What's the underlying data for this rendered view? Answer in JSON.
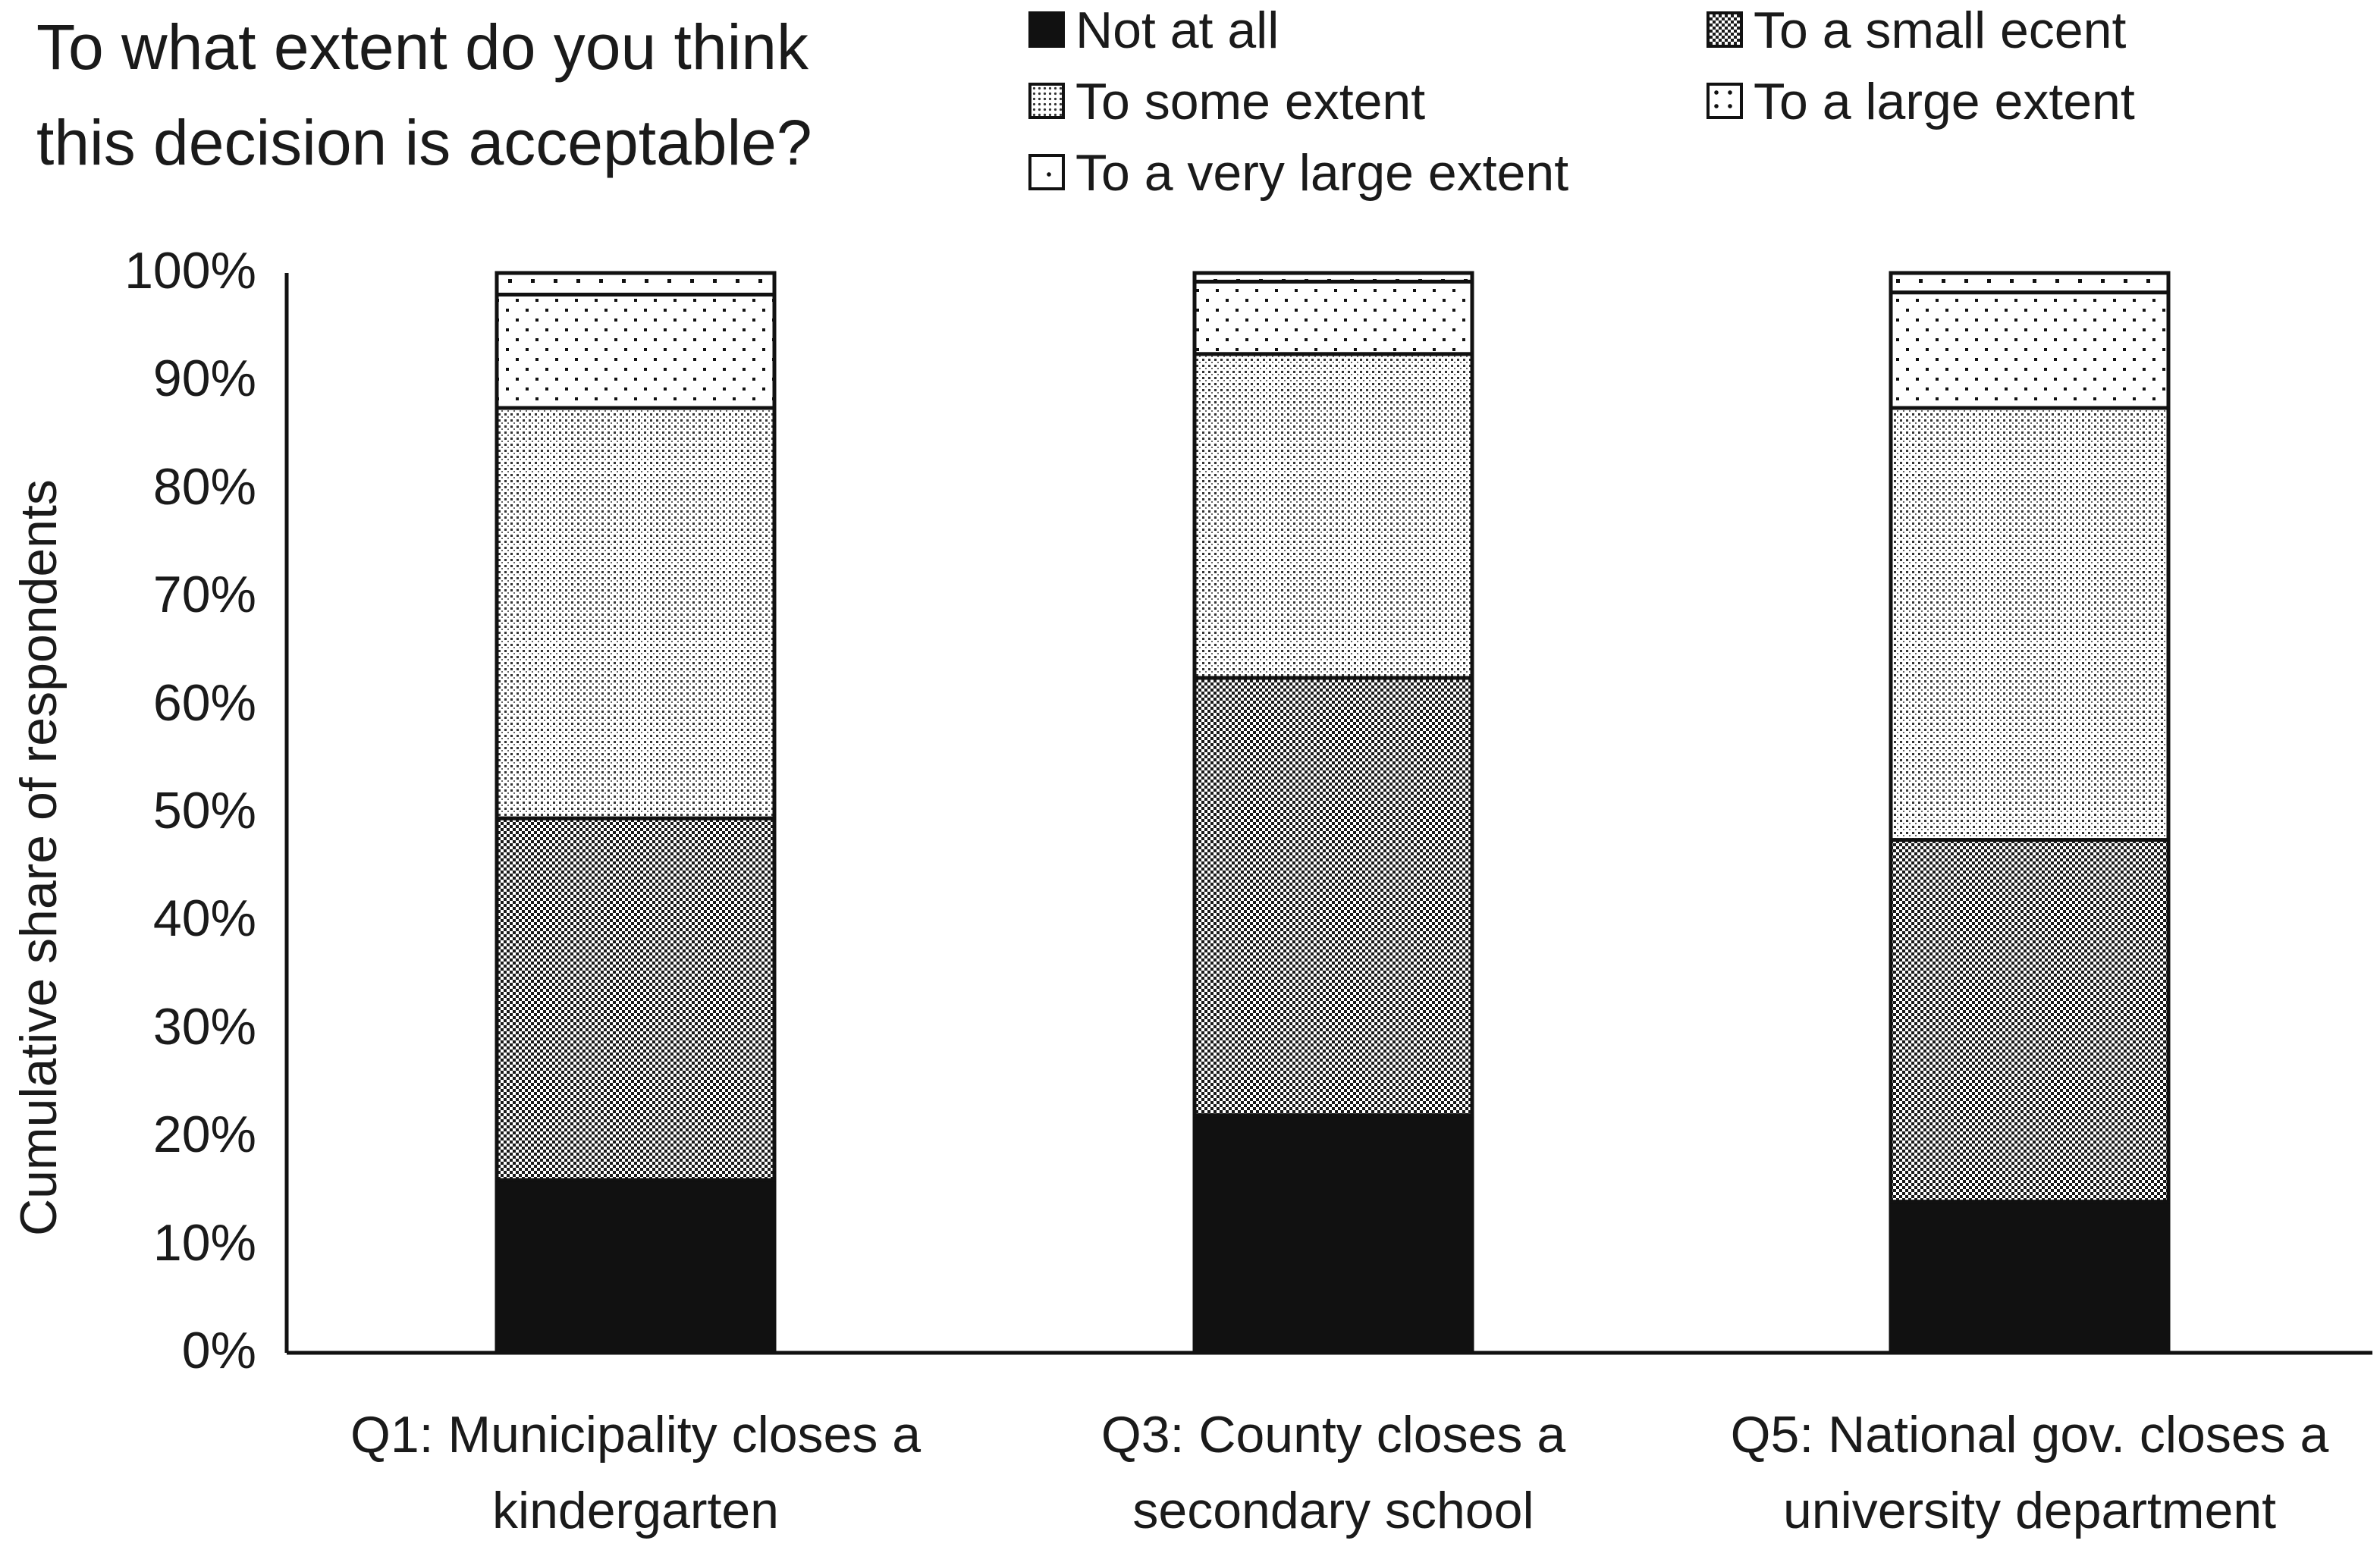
{
  "chart_data": {
    "type": "bar",
    "stacked": true,
    "title": [
      "To what extent do you think",
      "this decision is acceptable?"
    ],
    "ylabel": "Cumulative share of respondents",
    "xlabel": "",
    "ylim": [
      0,
      100
    ],
    "y_ticks": [
      "0%",
      "10%",
      "20%",
      "30%",
      "40%",
      "50%",
      "60%",
      "70%",
      "80%",
      "90%",
      "100%"
    ],
    "categories": [
      [
        "Q1: Municipality closes a",
        "kindergarten"
      ],
      [
        "Q3: County closes a",
        "secondary school"
      ],
      [
        "Q5: National gov. closes a",
        "university department"
      ]
    ],
    "series": [
      {
        "name": "Not at all",
        "values": [
          16,
          22,
          14
        ],
        "pattern": "solid"
      },
      {
        "name": "To a small ecent",
        "values": [
          33.5,
          40.5,
          33.5
        ],
        "pattern": "checker"
      },
      {
        "name": "To some extent",
        "values": [
          38,
          30,
          40
        ],
        "pattern": "dense-dots"
      },
      {
        "name": "To a large extent",
        "values": [
          10.5,
          6.7,
          10.7
        ],
        "pattern": "sparse-dots"
      },
      {
        "name": "To a very large extent",
        "values": [
          2,
          0.8,
          1.8
        ],
        "pattern": "very-sparse-dots"
      }
    ],
    "legend_placement": "top-right",
    "grid": false
  }
}
